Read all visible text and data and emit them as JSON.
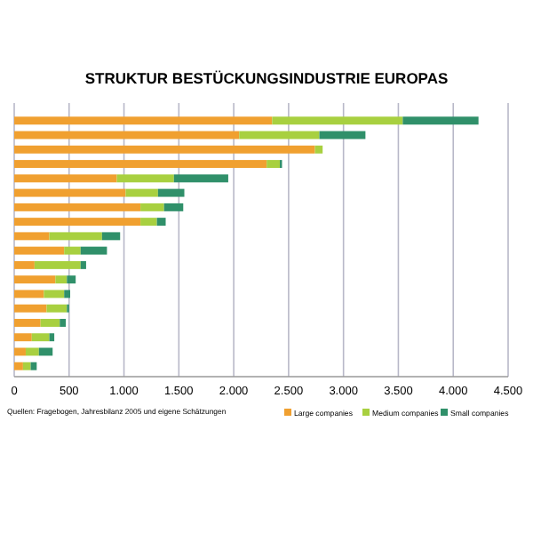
{
  "chart_data": {
    "type": "bar",
    "orientation": "horizontal",
    "stacked": true,
    "title": "STRUKTUR BESTÜCKUNGSINDUSTRIE EUROPAS",
    "categories": [
      null,
      null,
      null,
      null,
      null,
      null,
      null,
      null,
      null,
      null,
      null,
      null,
      null,
      null,
      null,
      null,
      null,
      null
    ],
    "series": [
      {
        "name": "Large companies",
        "color": "#f0a030",
        "values": [
          2350,
          2050,
          2740,
          2300,
          935,
          1015,
          1150,
          1150,
          320,
          455,
          185,
          375,
          270,
          295,
          240,
          160,
          105,
          80
        ]
      },
      {
        "name": "Medium companies",
        "color": "#a8d040",
        "values": [
          1190,
          730,
          70,
          120,
          520,
          295,
          215,
          150,
          480,
          150,
          420,
          105,
          185,
          185,
          175,
          160,
          120,
          70
        ]
      },
      {
        "name": "Small companies",
        "color": "#30906a",
        "values": [
          690,
          420,
          0,
          20,
          495,
          240,
          175,
          80,
          165,
          240,
          50,
          80,
          55,
          20,
          55,
          45,
          125,
          55
        ]
      }
    ],
    "xlim": [
      0,
      4500
    ],
    "xticks": [
      0,
      500,
      {
        "value": 1000,
        "label": "1.000"
      },
      {
        "value": 1500,
        "label": "1.500"
      },
      {
        "value": 2000,
        "label": "2.000"
      },
      {
        "value": 2500,
        "label": "2.500"
      },
      {
        "value": 3000,
        "label": "3.000"
      },
      {
        "value": 3500,
        "label": "3.500"
      },
      {
        "value": 4000,
        "label": "4.000"
      },
      {
        "value": 4500,
        "label": "4.500"
      }
    ],
    "grid": "x",
    "legend": "bottom right",
    "annotations": [
      "Quellen: Fragebogen, Jahresbilanz 2005 und eigene Schätzungen"
    ]
  }
}
